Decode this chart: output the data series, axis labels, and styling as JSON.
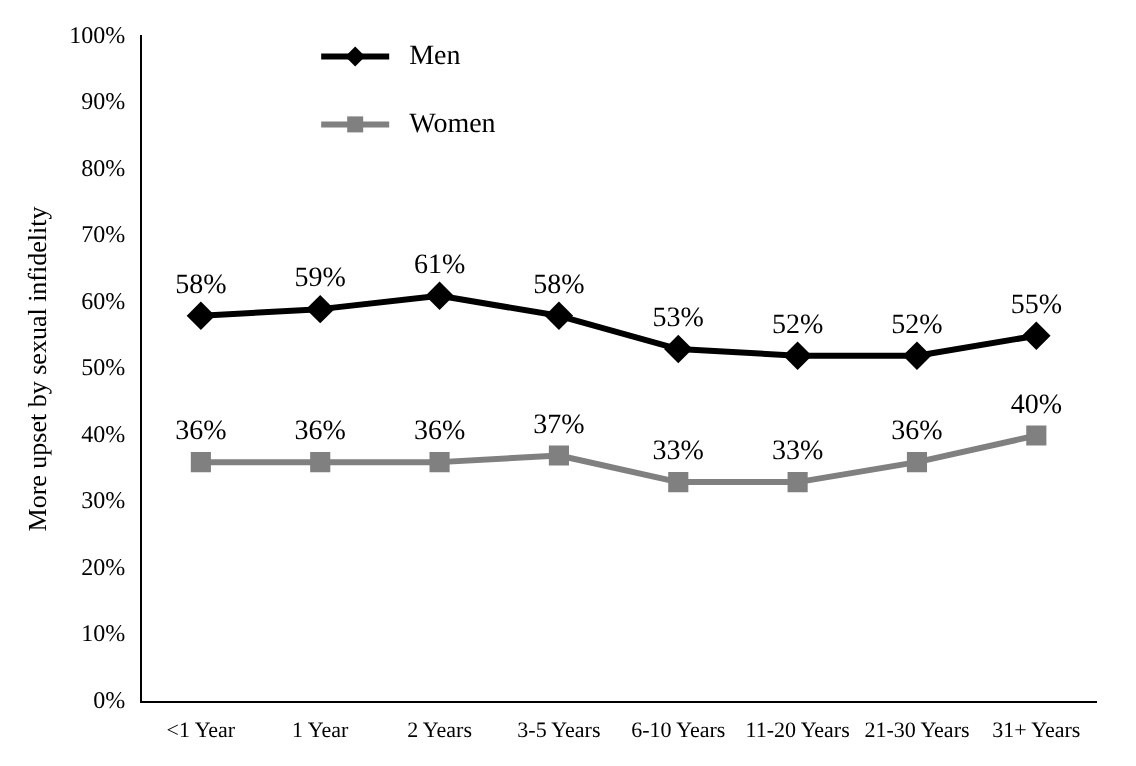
{
  "chart_data": {
    "type": "line",
    "ylabel": "More upset by sexual infidelity",
    "categories": [
      "<1 Year",
      "1 Year",
      "2 Years",
      "3-5 Years",
      "6-10 Years",
      "11-20 Years",
      "21-30 Years",
      "31+ Years"
    ],
    "series": [
      {
        "name": "Men",
        "color": "#000000",
        "marker": "diamond",
        "values": [
          58,
          59,
          61,
          58,
          53,
          52,
          52,
          55
        ],
        "value_labels": [
          "58%",
          "59%",
          "61%",
          "58%",
          "53%",
          "52%",
          "52%",
          "55%"
        ]
      },
      {
        "name": "Women",
        "color": "#808080",
        "marker": "square",
        "values": [
          36,
          36,
          36,
          37,
          33,
          33,
          36,
          40
        ],
        "value_labels": [
          "36%",
          "36%",
          "36%",
          "37%",
          "33%",
          "33%",
          "36%",
          "40%"
        ]
      }
    ],
    "ylim": [
      0,
      100
    ],
    "yticks": [
      {
        "value": 0,
        "label": "0%"
      },
      {
        "value": 10,
        "label": "10%"
      },
      {
        "value": 20,
        "label": "20%"
      },
      {
        "value": 30,
        "label": "30%"
      },
      {
        "value": 40,
        "label": "40%"
      },
      {
        "value": 50,
        "label": "50%"
      },
      {
        "value": 60,
        "label": "60%"
      },
      {
        "value": 70,
        "label": "70%"
      },
      {
        "value": 80,
        "label": "80%"
      },
      {
        "value": 90,
        "label": "90%"
      },
      {
        "value": 100,
        "label": "100%"
      }
    ],
    "grid": false,
    "legend": "top left",
    "line_style": "solid"
  }
}
